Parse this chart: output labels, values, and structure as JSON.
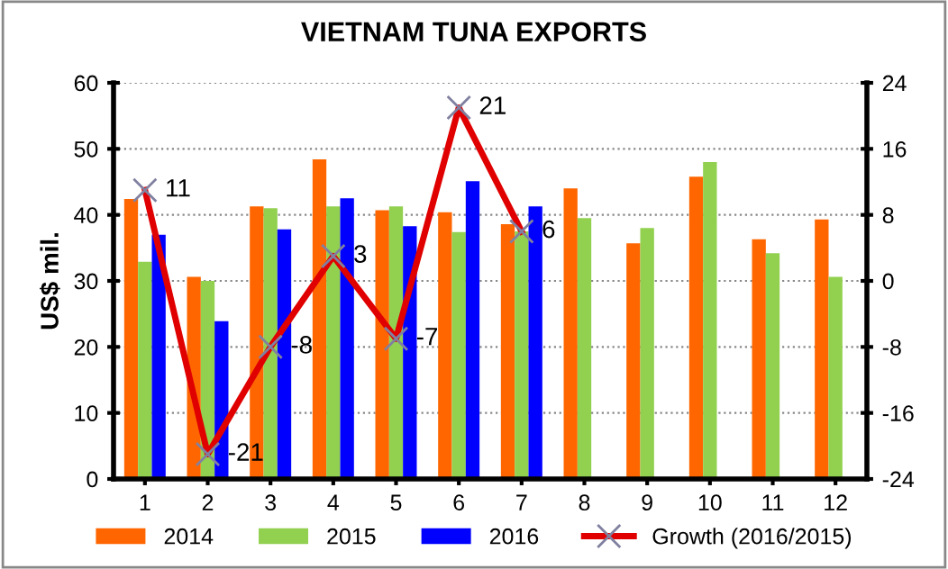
{
  "chart_data": {
    "type": "bar",
    "title": "VIETNAM TUNA EXPORTS",
    "ylabel": "US$ mil.",
    "categories": [
      "1",
      "2",
      "3",
      "4",
      "5",
      "6",
      "7",
      "8",
      "9",
      "10",
      "11",
      "12"
    ],
    "series": [
      {
        "name": "2014",
        "color": "#ff6600",
        "values": [
          42.4,
          30.6,
          41.3,
          48.4,
          40.7,
          40.4,
          38.6,
          44.0,
          35.7,
          45.8,
          36.3,
          39.3
        ]
      },
      {
        "name": "2015",
        "color": "#92d050",
        "values": [
          32.9,
          30.0,
          41.0,
          41.3,
          41.3,
          37.4,
          37.5,
          39.5,
          38.0,
          48.0,
          34.2,
          30.6
        ]
      },
      {
        "name": "2016",
        "color": "#0000ff",
        "values": [
          37.0,
          23.9,
          37.8,
          42.5,
          38.3,
          45.1,
          41.3,
          null,
          null,
          null,
          null,
          null
        ]
      },
      {
        "name": "Growth (2016/2015)",
        "type": "line",
        "axis": "y2",
        "color": "#e00000",
        "marker": "cross",
        "values": [
          11,
          -21,
          -8,
          3,
          -7,
          21,
          6,
          null,
          null,
          null,
          null,
          null
        ],
        "value_labels": [
          "11",
          "-21",
          "-8",
          "3",
          "-7",
          "21",
          "6",
          null,
          null,
          null,
          null,
          null
        ]
      }
    ],
    "ylim": [
      0,
      60
    ],
    "yticks": [
      0,
      10,
      20,
      30,
      40,
      50,
      60
    ],
    "y2lim": [
      -24,
      24
    ],
    "y2ticks": [
      -24,
      -16,
      -8,
      0,
      8,
      16,
      24
    ],
    "grid": "y",
    "legend": "bottom"
  }
}
